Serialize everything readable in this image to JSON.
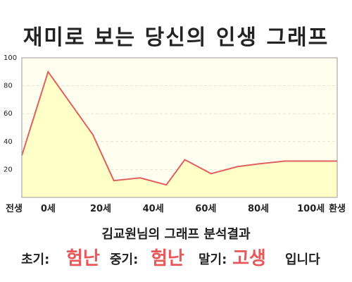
{
  "header": {
    "title": "재미로 보는 당신의 인생 그래프"
  },
  "chart_data": {
    "type": "area",
    "title": "재미로 보는 당신의 인생 그래프",
    "ylim": [
      0,
      100
    ],
    "yticks": [
      20,
      40,
      60,
      80,
      100
    ],
    "xlim": [
      -10,
      110
    ],
    "xticks": [
      {
        "value": -10,
        "label": "전생"
      },
      {
        "value": 0,
        "label": "0세"
      },
      {
        "value": 20,
        "label": "20세"
      },
      {
        "value": 40,
        "label": "40세"
      },
      {
        "value": 60,
        "label": "60세"
      },
      {
        "value": 80,
        "label": "80세"
      },
      {
        "value": 100,
        "label": "100세"
      },
      {
        "value": 110,
        "label": "환생"
      }
    ],
    "grid": true,
    "series": [
      {
        "x": [
          -10,
          0,
          17,
          25,
          35,
          45,
          52,
          62,
          72,
          80,
          90,
          100,
          110
        ],
        "values": [
          30,
          90,
          45,
          12,
          14,
          9,
          27,
          17,
          22,
          24,
          26,
          26,
          26
        ]
      }
    ],
    "colors": {
      "line": "#e06060",
      "fill": "#ffffc8",
      "plot_bg": "#fffff0",
      "grid": "#e6e6cc"
    }
  },
  "summary": {
    "text": "김교원님의 그래프 분석결과"
  },
  "verdict": {
    "early_label": "초기:",
    "early_value": "험난",
    "mid_label": "중기:",
    "mid_value": "험난",
    "late_label": "말기:",
    "late_value": "고생",
    "ending": "입니다"
  }
}
